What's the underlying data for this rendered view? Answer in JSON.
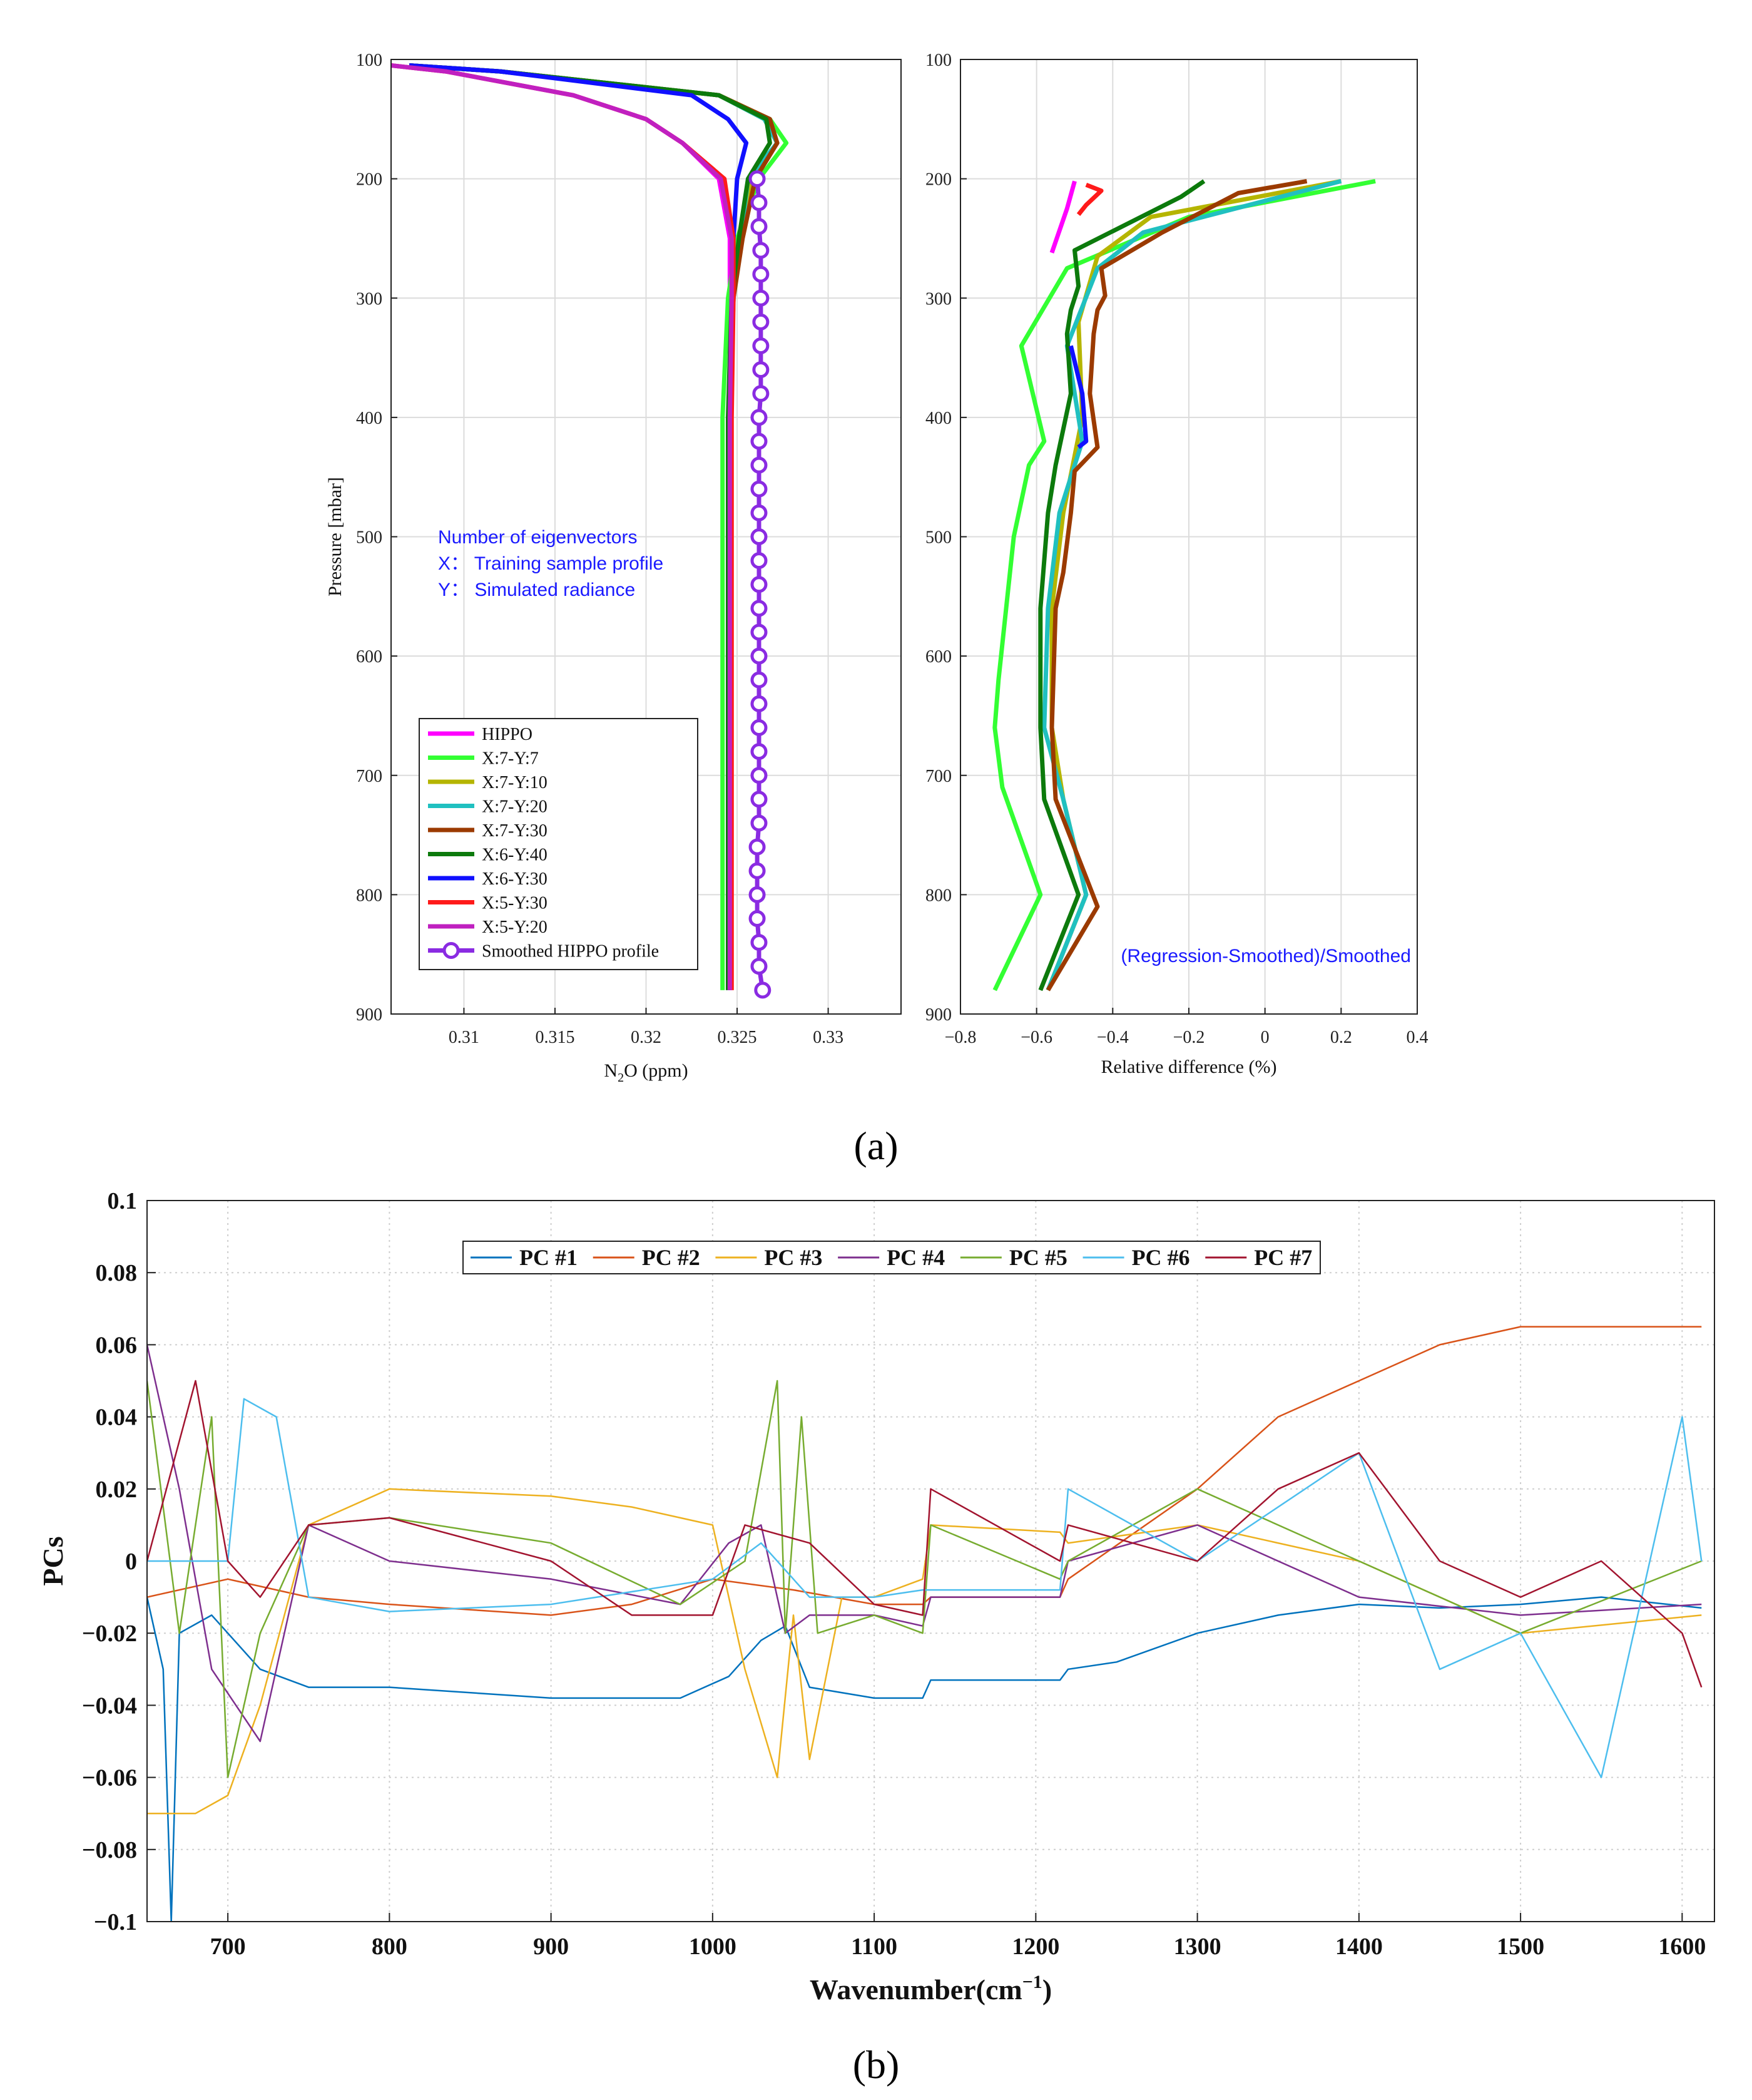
{
  "chart_data": [
    {
      "id": "a1",
      "type": "line",
      "panel": "(a)",
      "xlabel": "N2O (ppm)",
      "ylabel": "Pressure [mbar]",
      "xlim": [
        0.306,
        0.334
      ],
      "ylim": [
        100,
        900
      ],
      "xticks": [
        0.31,
        0.315,
        0.32,
        0.325,
        0.33
      ],
      "yticks": [
        100,
        200,
        300,
        400,
        500,
        600,
        700,
        800,
        900
      ],
      "pressure": [
        105,
        110,
        130,
        150,
        170,
        200,
        250,
        300,
        400,
        500,
        600,
        700,
        800,
        880
      ],
      "series": [
        {
          "name": "HIPPO",
          "color": "#ff00ff",
          "values": [
            0.306,
            0.309,
            0.316,
            0.32,
            0.322,
            0.324,
            0.3246,
            0.3246,
            0.3246,
            0.3246,
            0.3246,
            0.3246,
            0.3246,
            0.3246
          ]
        },
        {
          "name": "X:7-Y:7",
          "color": "#33ff33",
          "values": [
            0.307,
            0.312,
            0.324,
            0.3268,
            0.3277,
            0.3262,
            0.325,
            0.3245,
            0.3242,
            0.3242,
            0.3242,
            0.3242,
            0.3242,
            0.3242
          ]
        },
        {
          "name": "X:7-Y:10",
          "color": "#b5b500",
          "values": [
            0.307,
            0.312,
            0.324,
            0.3265,
            0.3272,
            0.3258,
            0.3252,
            0.3248,
            0.3246,
            0.3246,
            0.3246,
            0.3246,
            0.3246,
            0.3246
          ]
        },
        {
          "name": "X:7-Y:20",
          "color": "#20c0c0",
          "values": [
            0.307,
            0.312,
            0.324,
            0.3265,
            0.3272,
            0.3256,
            0.3252,
            0.3248,
            0.3246,
            0.3246,
            0.3246,
            0.3246,
            0.3246,
            0.3246
          ]
        },
        {
          "name": "X:7-Y:30",
          "color": "#9b3a00",
          "values": [
            0.307,
            0.312,
            0.324,
            0.3268,
            0.3272,
            0.326,
            0.3253,
            0.3248,
            0.3246,
            0.3246,
            0.3246,
            0.3246,
            0.3246,
            0.3246
          ]
        },
        {
          "name": "X:6-Y:40",
          "color": "#0c7a0c",
          "values": [
            0.307,
            0.312,
            0.324,
            0.3266,
            0.3268,
            0.3256,
            0.3251,
            0.3247,
            0.3245,
            0.3245,
            0.3245,
            0.3245,
            0.3245,
            0.3245
          ]
        },
        {
          "name": "X:6-Y:30",
          "color": "#1010ff",
          "values": [
            0.307,
            0.312,
            0.3225,
            0.3245,
            0.3255,
            0.325,
            0.3248,
            0.3247,
            0.3246,
            0.3246,
            0.3246,
            0.3246,
            0.3246,
            0.3246
          ]
        },
        {
          "name": "X:5-Y:30",
          "color": "#ff1a1a",
          "values": [
            0.306,
            0.309,
            0.316,
            0.32,
            0.322,
            0.3243,
            0.3248,
            0.3248,
            0.3247,
            0.3247,
            0.3247,
            0.3247,
            0.3247,
            0.3247
          ]
        },
        {
          "name": "X:5-Y:20",
          "color": "#c020c0",
          "values": [
            0.306,
            0.309,
            0.316,
            0.32,
            0.322,
            0.3241,
            0.3247,
            0.3247,
            0.3246,
            0.3246,
            0.3246,
            0.3246,
            0.3246,
            0.3246
          ]
        }
      ],
      "smoothed": {
        "name": "Smoothed HIPPO profile",
        "color": "#8a2be2",
        "pressure": [
          200,
          220,
          240,
          260,
          280,
          300,
          320,
          340,
          360,
          380,
          400,
          420,
          440,
          460,
          480,
          500,
          520,
          540,
          560,
          580,
          600,
          620,
          640,
          660,
          680,
          700,
          720,
          740,
          760,
          780,
          800,
          820,
          840,
          860,
          880
        ],
        "values": [
          0.3261,
          0.3262,
          0.3262,
          0.3263,
          0.3263,
          0.3263,
          0.3263,
          0.3263,
          0.3263,
          0.3263,
          0.3262,
          0.3262,
          0.3262,
          0.3262,
          0.3262,
          0.3262,
          0.3262,
          0.3262,
          0.3262,
          0.3262,
          0.3262,
          0.3262,
          0.3262,
          0.3262,
          0.3262,
          0.3262,
          0.3262,
          0.3262,
          0.3261,
          0.3261,
          0.3261,
          0.3261,
          0.3262,
          0.3262,
          0.3264
        ]
      },
      "annotation": [
        "Number of eigenvectors",
        "X： Training sample profile",
        "Y： Simulated radiance"
      ]
    },
    {
      "id": "a2",
      "type": "line",
      "panel": "(a)",
      "xlabel": "Relative difference (%)",
      "ylabel": "",
      "xlim": [
        -0.8,
        0.4
      ],
      "ylim": [
        100,
        900
      ],
      "xticks": [
        -0.8,
        -0.6,
        -0.4,
        -0.2,
        0,
        0.2,
        0.4
      ],
      "xtick_labels": [
        "−0.8",
        "−0.6",
        "−0.4",
        "−0.2",
        "0",
        "0.2",
        "0.4"
      ],
      "yticks": [
        100,
        200,
        300,
        400,
        500,
        600,
        700,
        800,
        900
      ],
      "series": [
        {
          "name": "HIPPO",
          "color": "#ff00ff",
          "pressure": [
            202,
            225,
            262
          ],
          "values": [
            -0.5,
            -0.52,
            -0.56
          ]
        },
        {
          "name": "X:5-Y:30",
          "color": "#ff1a1a",
          "pressure": [
            205,
            210,
            222,
            230
          ],
          "values": [
            -0.47,
            -0.43,
            -0.47,
            -0.49
          ]
        },
        {
          "name": "X:7-Y:7",
          "color": "#33ff33",
          "pressure": [
            202,
            232,
            275,
            340,
            420,
            440,
            500,
            620,
            660,
            710,
            800,
            880
          ],
          "values": [
            0.29,
            -0.2,
            -0.52,
            -0.64,
            -0.58,
            -0.62,
            -0.66,
            -0.7,
            -0.71,
            -0.69,
            -0.59,
            -0.71
          ]
        },
        {
          "name": "X:7-Y:10",
          "color": "#b5b500",
          "pressure": [
            202,
            232,
            265,
            320,
            400,
            480,
            560,
            660,
            720,
            800,
            880
          ],
          "values": [
            0.2,
            -0.3,
            -0.44,
            -0.49,
            -0.48,
            -0.53,
            -0.56,
            -0.56,
            -0.53,
            -0.47,
            -0.57
          ]
        },
        {
          "name": "X:7-Y:20",
          "color": "#20c0c0",
          "pressure": [
            202,
            245,
            275,
            340,
            420,
            480,
            560,
            660,
            720,
            800,
            880
          ],
          "values": [
            0.2,
            -0.32,
            -0.44,
            -0.52,
            -0.48,
            -0.54,
            -0.57,
            -0.58,
            -0.53,
            -0.47,
            -0.57
          ]
        },
        {
          "name": "X:7-Y:30",
          "color": "#9b3a00",
          "pressure": [
            202,
            212,
            245,
            275,
            298,
            310,
            330,
            380,
            425,
            445,
            480,
            530,
            560,
            660,
            720,
            810,
            880
          ],
          "values": [
            0.11,
            -0.07,
            -0.27,
            -0.43,
            -0.42,
            -0.44,
            -0.45,
            -0.46,
            -0.44,
            -0.5,
            -0.51,
            -0.53,
            -0.55,
            -0.56,
            -0.55,
            -0.44,
            -0.57
          ]
        },
        {
          "name": "X:6-Y:40",
          "color": "#0c7a0c",
          "pressure": [
            202,
            215,
            260,
            290,
            310,
            330,
            380,
            440,
            480,
            560,
            660,
            720,
            800,
            880
          ],
          "values": [
            -0.16,
            -0.22,
            -0.5,
            -0.49,
            -0.51,
            -0.52,
            -0.51,
            -0.55,
            -0.57,
            -0.59,
            -0.59,
            -0.58,
            -0.49,
            -0.59
          ]
        },
        {
          "name": "X:6-Y:30",
          "color": "#1010ff",
          "pressure": [
            340,
            380,
            420,
            425
          ],
          "values": [
            -0.51,
            -0.48,
            -0.47,
            -0.49
          ]
        }
      ],
      "annotation": "(Regression-Smoothed)/Smoothed"
    },
    {
      "id": "b",
      "type": "line",
      "panel": "(b)",
      "xlabel": "Wavenumber(cm−1)",
      "ylabel": "PCs",
      "xlim": [
        650,
        1620
      ],
      "ylim": [
        -0.1,
        0.1
      ],
      "xticks": [
        700,
        800,
        900,
        1000,
        1100,
        1200,
        1300,
        1400,
        1500,
        1600
      ],
      "yticks": [
        -0.1,
        -0.08,
        -0.06,
        -0.04,
        -0.02,
        0,
        0.02,
        0.04,
        0.06,
        0.08,
        0.1
      ],
      "ytick_labels": [
        "−0.1",
        "−0.08",
        "−0.06",
        "−0.04",
        "−0.02",
        "0",
        "0.02",
        "0.04",
        "0.06",
        "0.08",
        "0.1"
      ],
      "series": [
        {
          "name": "PC #1",
          "color": "#0072bd",
          "x": [
            650,
            660,
            665,
            670,
            690,
            720,
            750,
            800,
            900,
            980,
            1010,
            1030,
            1045,
            1060,
            1100,
            1130,
            1135,
            1215,
            1220,
            1250,
            1300,
            1350,
            1400,
            1450,
            1500,
            1550,
            1612
          ],
          "y": [
            -0.01,
            -0.03,
            -0.1,
            -0.02,
            -0.015,
            -0.03,
            -0.035,
            -0.035,
            -0.038,
            -0.038,
            -0.032,
            -0.022,
            -0.018,
            -0.035,
            -0.038,
            -0.038,
            -0.033,
            -0.033,
            -0.03,
            -0.028,
            -0.02,
            -0.015,
            -0.012,
            -0.013,
            -0.012,
            -0.01,
            -0.013
          ]
        },
        {
          "name": "PC #2",
          "color": "#d95319",
          "x": [
            650,
            700,
            750,
            800,
            900,
            950,
            1000,
            1050,
            1100,
            1130,
            1135,
            1215,
            1220,
            1300,
            1350,
            1400,
            1450,
            1500,
            1550,
            1612
          ],
          "y": [
            -0.01,
            -0.005,
            -0.01,
            -0.012,
            -0.015,
            -0.012,
            -0.005,
            -0.008,
            -0.012,
            -0.012,
            -0.01,
            -0.01,
            -0.005,
            0.02,
            0.04,
            0.05,
            0.06,
            0.065,
            0.065,
            0.065
          ]
        },
        {
          "name": "PC #3",
          "color": "#edb120",
          "x": [
            650,
            680,
            700,
            720,
            750,
            800,
            900,
            950,
            1000,
            1020,
            1040,
            1050,
            1060,
            1080,
            1100,
            1130,
            1135,
            1215,
            1220,
            1300,
            1400,
            1500,
            1612
          ],
          "y": [
            -0.07,
            -0.07,
            -0.065,
            -0.04,
            0.01,
            0.02,
            0.018,
            0.015,
            0.01,
            -0.03,
            -0.06,
            -0.015,
            -0.055,
            -0.01,
            -0.01,
            -0.005,
            0.01,
            0.008,
            0.005,
            0.01,
            0.0,
            -0.02,
            -0.015
          ]
        },
        {
          "name": "PC #4",
          "color": "#7e2f8e",
          "x": [
            650,
            670,
            690,
            720,
            750,
            800,
            900,
            980,
            1010,
            1030,
            1045,
            1060,
            1100,
            1130,
            1135,
            1215,
            1220,
            1300,
            1400,
            1500,
            1612
          ],
          "y": [
            0.06,
            0.02,
            -0.03,
            -0.05,
            0.01,
            0.0,
            -0.005,
            -0.012,
            0.005,
            0.01,
            -0.02,
            -0.015,
            -0.015,
            -0.018,
            -0.01,
            -0.01,
            0.0,
            0.01,
            -0.01,
            -0.015,
            -0.012
          ]
        },
        {
          "name": "PC #5",
          "color": "#77ac30",
          "x": [
            650,
            670,
            690,
            700,
            720,
            750,
            800,
            900,
            980,
            1020,
            1040,
            1045,
            1055,
            1065,
            1100,
            1130,
            1135,
            1215,
            1220,
            1300,
            1400,
            1500,
            1612
          ],
          "y": [
            0.05,
            -0.02,
            0.04,
            -0.06,
            -0.02,
            0.01,
            0.012,
            0.005,
            -0.012,
            0.0,
            0.05,
            -0.02,
            0.04,
            -0.02,
            -0.015,
            -0.02,
            0.01,
            -0.005,
            0.0,
            0.02,
            0.0,
            -0.02,
            0.0
          ]
        },
        {
          "name": "PC #6",
          "color": "#4dbeee",
          "x": [
            650,
            700,
            710,
            730,
            750,
            800,
            900,
            1000,
            1030,
            1060,
            1100,
            1130,
            1135,
            1215,
            1220,
            1300,
            1400,
            1450,
            1500,
            1550,
            1600,
            1612
          ],
          "y": [
            0.0,
            0.0,
            0.045,
            0.04,
            -0.01,
            -0.014,
            -0.012,
            -0.005,
            0.005,
            -0.01,
            -0.01,
            -0.008,
            -0.008,
            -0.008,
            0.02,
            0.0,
            0.03,
            -0.03,
            -0.02,
            -0.06,
            0.04,
            0.0
          ]
        },
        {
          "name": "PC #7",
          "color": "#a2142f",
          "x": [
            650,
            680,
            700,
            720,
            750,
            800,
            900,
            950,
            1000,
            1020,
            1060,
            1100,
            1130,
            1135,
            1215,
            1220,
            1300,
            1350,
            1400,
            1450,
            1500,
            1550,
            1600,
            1612
          ],
          "y": [
            0.0,
            0.05,
            0.0,
            -0.01,
            0.01,
            0.012,
            0.0,
            -0.015,
            -0.015,
            0.01,
            0.005,
            -0.012,
            -0.015,
            0.02,
            0.0,
            0.01,
            0.0,
            0.02,
            0.03,
            0.0,
            -0.01,
            0.0,
            -0.02,
            -0.035
          ]
        }
      ]
    }
  ],
  "captions": {
    "a": "(a)",
    "b": "(b)"
  }
}
